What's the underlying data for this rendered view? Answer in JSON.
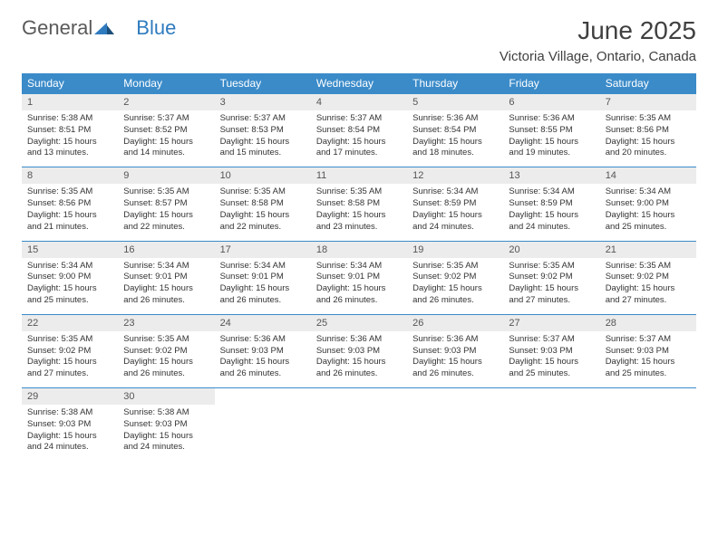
{
  "logo": {
    "general": "General",
    "blue": "Blue"
  },
  "title": "June 2025",
  "location": "Victoria Village, Ontario, Canada",
  "colors": {
    "header_bg": "#3b8bc9",
    "header_text": "#ffffff",
    "daynum_bg": "#ececec",
    "border": "#3b8bc9",
    "body_text": "#333333",
    "logo_gray": "#5a5a5a",
    "logo_blue": "#2f7bbf"
  },
  "weekdays": [
    "Sunday",
    "Monday",
    "Tuesday",
    "Wednesday",
    "Thursday",
    "Friday",
    "Saturday"
  ],
  "weeks": [
    [
      {
        "n": "1",
        "sr": "Sunrise: 5:38 AM",
        "ss": "Sunset: 8:51 PM",
        "dl": "Daylight: 15 hours and 13 minutes."
      },
      {
        "n": "2",
        "sr": "Sunrise: 5:37 AM",
        "ss": "Sunset: 8:52 PM",
        "dl": "Daylight: 15 hours and 14 minutes."
      },
      {
        "n": "3",
        "sr": "Sunrise: 5:37 AM",
        "ss": "Sunset: 8:53 PM",
        "dl": "Daylight: 15 hours and 15 minutes."
      },
      {
        "n": "4",
        "sr": "Sunrise: 5:37 AM",
        "ss": "Sunset: 8:54 PM",
        "dl": "Daylight: 15 hours and 17 minutes."
      },
      {
        "n": "5",
        "sr": "Sunrise: 5:36 AM",
        "ss": "Sunset: 8:54 PM",
        "dl": "Daylight: 15 hours and 18 minutes."
      },
      {
        "n": "6",
        "sr": "Sunrise: 5:36 AM",
        "ss": "Sunset: 8:55 PM",
        "dl": "Daylight: 15 hours and 19 minutes."
      },
      {
        "n": "7",
        "sr": "Sunrise: 5:35 AM",
        "ss": "Sunset: 8:56 PM",
        "dl": "Daylight: 15 hours and 20 minutes."
      }
    ],
    [
      {
        "n": "8",
        "sr": "Sunrise: 5:35 AM",
        "ss": "Sunset: 8:56 PM",
        "dl": "Daylight: 15 hours and 21 minutes."
      },
      {
        "n": "9",
        "sr": "Sunrise: 5:35 AM",
        "ss": "Sunset: 8:57 PM",
        "dl": "Daylight: 15 hours and 22 minutes."
      },
      {
        "n": "10",
        "sr": "Sunrise: 5:35 AM",
        "ss": "Sunset: 8:58 PM",
        "dl": "Daylight: 15 hours and 22 minutes."
      },
      {
        "n": "11",
        "sr": "Sunrise: 5:35 AM",
        "ss": "Sunset: 8:58 PM",
        "dl": "Daylight: 15 hours and 23 minutes."
      },
      {
        "n": "12",
        "sr": "Sunrise: 5:34 AM",
        "ss": "Sunset: 8:59 PM",
        "dl": "Daylight: 15 hours and 24 minutes."
      },
      {
        "n": "13",
        "sr": "Sunrise: 5:34 AM",
        "ss": "Sunset: 8:59 PM",
        "dl": "Daylight: 15 hours and 24 minutes."
      },
      {
        "n": "14",
        "sr": "Sunrise: 5:34 AM",
        "ss": "Sunset: 9:00 PM",
        "dl": "Daylight: 15 hours and 25 minutes."
      }
    ],
    [
      {
        "n": "15",
        "sr": "Sunrise: 5:34 AM",
        "ss": "Sunset: 9:00 PM",
        "dl": "Daylight: 15 hours and 25 minutes."
      },
      {
        "n": "16",
        "sr": "Sunrise: 5:34 AM",
        "ss": "Sunset: 9:01 PM",
        "dl": "Daylight: 15 hours and 26 minutes."
      },
      {
        "n": "17",
        "sr": "Sunrise: 5:34 AM",
        "ss": "Sunset: 9:01 PM",
        "dl": "Daylight: 15 hours and 26 minutes."
      },
      {
        "n": "18",
        "sr": "Sunrise: 5:34 AM",
        "ss": "Sunset: 9:01 PM",
        "dl": "Daylight: 15 hours and 26 minutes."
      },
      {
        "n": "19",
        "sr": "Sunrise: 5:35 AM",
        "ss": "Sunset: 9:02 PM",
        "dl": "Daylight: 15 hours and 26 minutes."
      },
      {
        "n": "20",
        "sr": "Sunrise: 5:35 AM",
        "ss": "Sunset: 9:02 PM",
        "dl": "Daylight: 15 hours and 27 minutes."
      },
      {
        "n": "21",
        "sr": "Sunrise: 5:35 AM",
        "ss": "Sunset: 9:02 PM",
        "dl": "Daylight: 15 hours and 27 minutes."
      }
    ],
    [
      {
        "n": "22",
        "sr": "Sunrise: 5:35 AM",
        "ss": "Sunset: 9:02 PM",
        "dl": "Daylight: 15 hours and 27 minutes."
      },
      {
        "n": "23",
        "sr": "Sunrise: 5:35 AM",
        "ss": "Sunset: 9:02 PM",
        "dl": "Daylight: 15 hours and 26 minutes."
      },
      {
        "n": "24",
        "sr": "Sunrise: 5:36 AM",
        "ss": "Sunset: 9:03 PM",
        "dl": "Daylight: 15 hours and 26 minutes."
      },
      {
        "n": "25",
        "sr": "Sunrise: 5:36 AM",
        "ss": "Sunset: 9:03 PM",
        "dl": "Daylight: 15 hours and 26 minutes."
      },
      {
        "n": "26",
        "sr": "Sunrise: 5:36 AM",
        "ss": "Sunset: 9:03 PM",
        "dl": "Daylight: 15 hours and 26 minutes."
      },
      {
        "n": "27",
        "sr": "Sunrise: 5:37 AM",
        "ss": "Sunset: 9:03 PM",
        "dl": "Daylight: 15 hours and 25 minutes."
      },
      {
        "n": "28",
        "sr": "Sunrise: 5:37 AM",
        "ss": "Sunset: 9:03 PM",
        "dl": "Daylight: 15 hours and 25 minutes."
      }
    ],
    [
      {
        "n": "29",
        "sr": "Sunrise: 5:38 AM",
        "ss": "Sunset: 9:03 PM",
        "dl": "Daylight: 15 hours and 24 minutes."
      },
      {
        "n": "30",
        "sr": "Sunrise: 5:38 AM",
        "ss": "Sunset: 9:03 PM",
        "dl": "Daylight: 15 hours and 24 minutes."
      },
      null,
      null,
      null,
      null,
      null
    ]
  ]
}
